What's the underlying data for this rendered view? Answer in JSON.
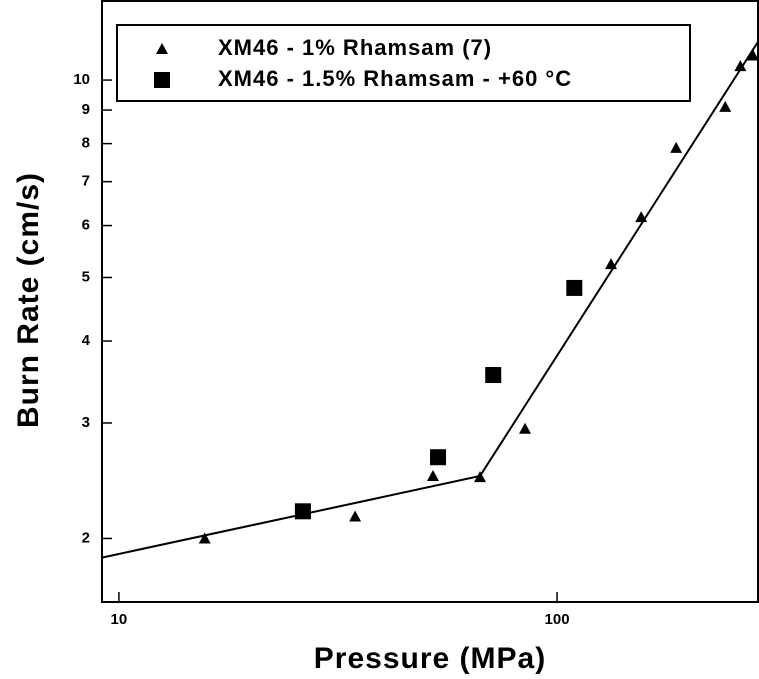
{
  "chart_data": {
    "type": "scatter",
    "x_label": "Pressure (MPa)",
    "y_label": "Burn Rate (cm/s)",
    "xscale": "log",
    "yscale": "log",
    "xlim": [
      9.15,
      289
    ],
    "ylim": [
      1.6,
      13.2
    ],
    "xticks": [
      10,
      100
    ],
    "yticks": [
      2,
      3,
      4,
      5,
      6,
      7,
      8,
      9,
      10
    ],
    "series": [
      {
        "name": "XM46 - 1% Rhamsam (7)",
        "color": "#000000",
        "marker": "triangle",
        "x": [
          15.7,
          34.6,
          52.1,
          66.7,
          84.5,
          132.8,
          155.6,
          187,
          242,
          262,
          280
        ],
        "values": [
          2.0,
          2.16,
          2.49,
          2.48,
          2.94,
          5.24,
          6.18,
          7.88,
          9.1,
          10.5,
          10.9
        ]
      },
      {
        "name": "XM46 - 1.5% Rhamsam - +60 °C",
        "color": "#000000",
        "marker": "square",
        "x": [
          26.3,
          53.5,
          71.5,
          109.5
        ],
        "values": [
          2.2,
          2.66,
          3.55,
          4.82
        ]
      },
      {
        "color": "#000000",
        "mode": "line",
        "x": [
          9.15,
          66.7,
          289
        ],
        "values": [
          1.87,
          2.49,
          11.5
        ]
      }
    ]
  }
}
